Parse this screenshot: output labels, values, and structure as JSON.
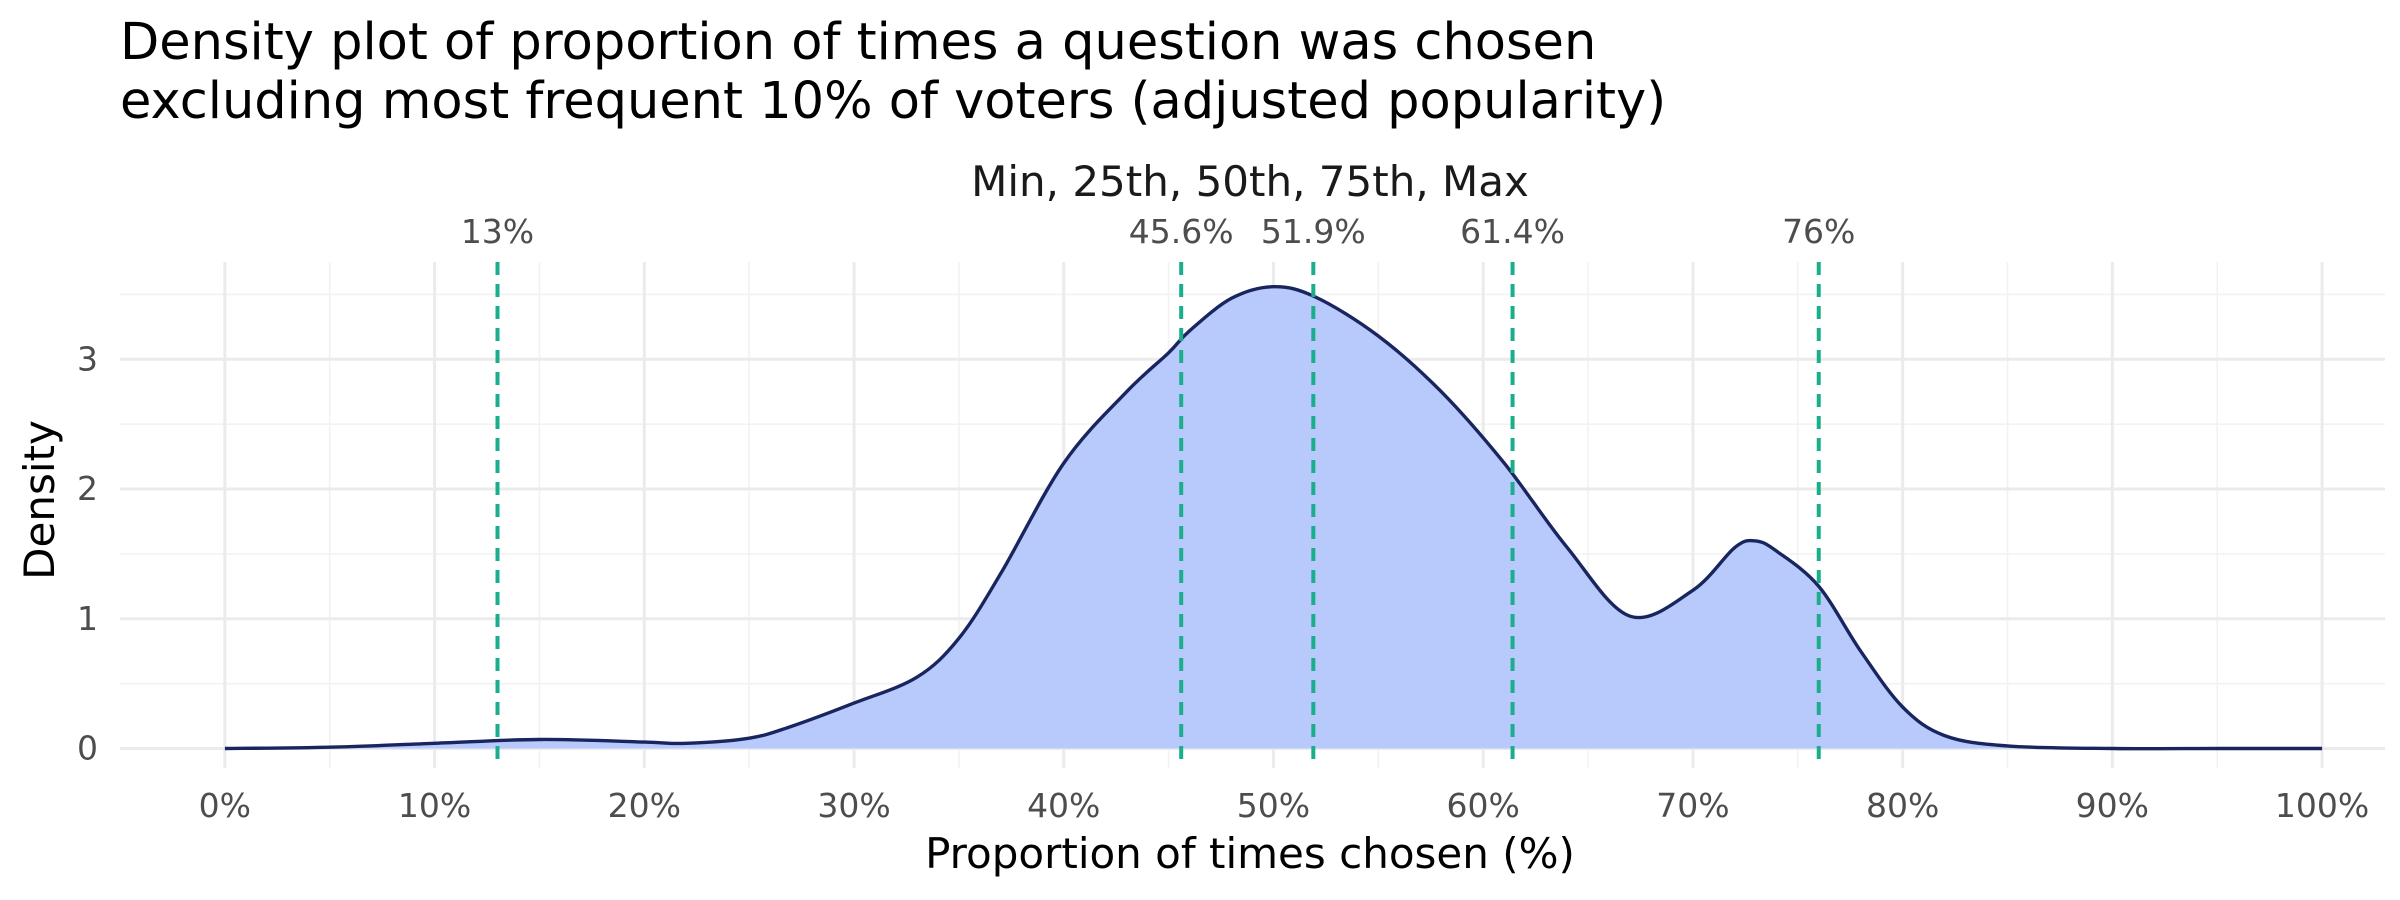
{
  "chart_data": {
    "type": "area",
    "title_line1": "Density plot of proportion of times a question was chosen",
    "title_line2": "excluding most frequent 10% of voters (adjusted popularity)",
    "subtitle": "Min, 25th, 50th, 75th, Max",
    "xlabel": "Proportion of times chosen (%)",
    "ylabel": "Density",
    "xlim": [
      -5,
      103
    ],
    "ylim": [
      -0.15,
      3.75
    ],
    "x_ticks": [
      0,
      10,
      20,
      30,
      40,
      50,
      60,
      70,
      80,
      90,
      100
    ],
    "x_tick_labels": [
      "0%",
      "10%",
      "20%",
      "30%",
      "40%",
      "50%",
      "60%",
      "70%",
      "80%",
      "90%",
      "100%"
    ],
    "y_ticks": [
      0,
      1,
      2,
      3
    ],
    "y_tick_labels": [
      "0",
      "1",
      "2",
      "3"
    ],
    "grid": true,
    "density": {
      "x": [
        0,
        5,
        10,
        15,
        20,
        22,
        25,
        27,
        30,
        33,
        35,
        37,
        40,
        43,
        45,
        46,
        48,
        50,
        52,
        55,
        58,
        61,
        64,
        67,
        70,
        72,
        73,
        74,
        76,
        78,
        80,
        82,
        85,
        90,
        95,
        100
      ],
      "y": [
        0.0,
        0.01,
        0.04,
        0.07,
        0.05,
        0.04,
        0.08,
        0.17,
        0.35,
        0.55,
        0.85,
        1.35,
        2.2,
        2.75,
        3.05,
        3.22,
        3.47,
        3.56,
        3.48,
        3.18,
        2.75,
        2.2,
        1.55,
        1.02,
        1.22,
        1.55,
        1.6,
        1.52,
        1.25,
        0.75,
        0.32,
        0.1,
        0.02,
        0.0,
        0.0,
        0.0
      ]
    },
    "quantiles": [
      13,
      45.6,
      51.9,
      61.4,
      76
    ],
    "quantile_labels": [
      "13%",
      "45.6%",
      "51.9%",
      "61.4%",
      "76%"
    ],
    "colors": {
      "fill": "#b8c9fb",
      "line": "#19255f",
      "quantile": "#1aae8c"
    }
  }
}
